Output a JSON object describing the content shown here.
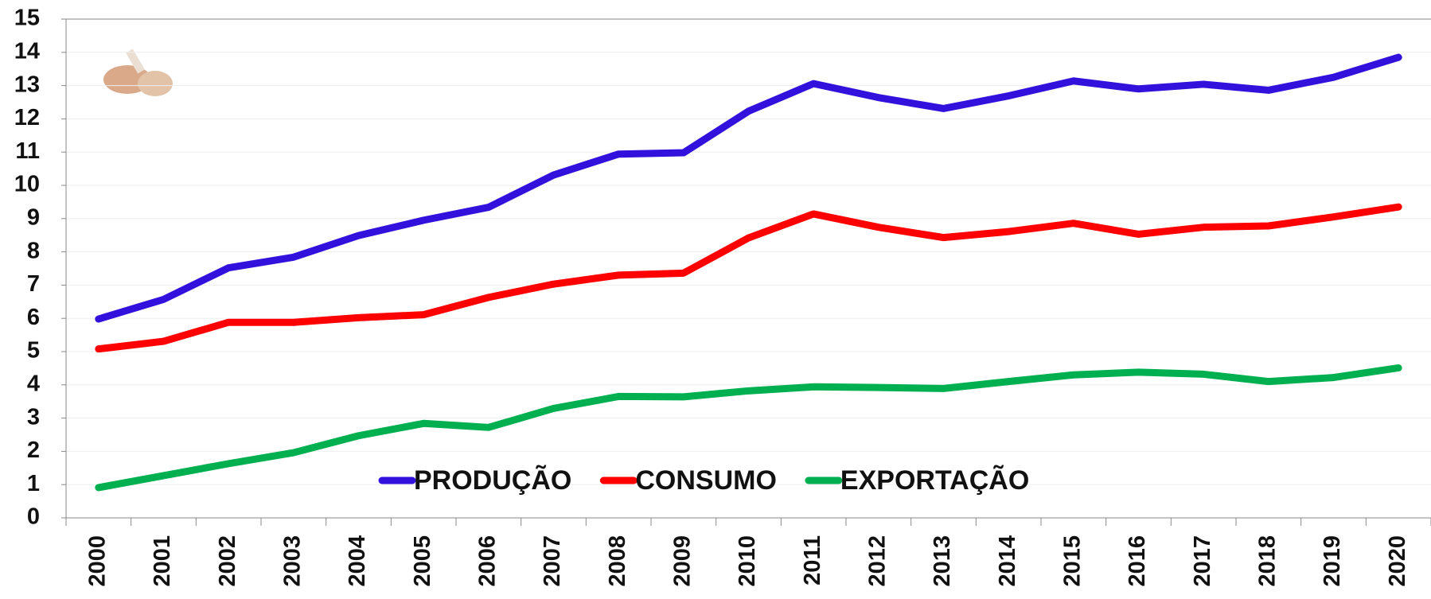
{
  "chart_data": {
    "type": "line",
    "categories": [
      "2000",
      "2001",
      "2002",
      "2003",
      "2004",
      "2005",
      "2006",
      "2007",
      "2008",
      "2009",
      "2010",
      "2011",
      "2012",
      "2013",
      "2014",
      "2015",
      "2016",
      "2017",
      "2018",
      "2019",
      "2020"
    ],
    "series": [
      {
        "name": "PRODUÇÃO",
        "color": "#3311dd",
        "values": [
          5.98,
          6.57,
          7.52,
          7.84,
          8.49,
          8.95,
          9.34,
          10.31,
          10.94,
          10.98,
          12.23,
          13.06,
          12.64,
          12.31,
          12.69,
          13.14,
          12.9,
          13.04,
          12.86,
          13.25,
          13.85
        ]
      },
      {
        "name": "CONSUMO",
        "color": "#ff0000",
        "values": [
          5.08,
          5.31,
          5.88,
          5.88,
          6.02,
          6.11,
          6.63,
          7.03,
          7.3,
          7.36,
          8.42,
          9.14,
          8.74,
          8.43,
          8.61,
          8.86,
          8.53,
          8.74,
          8.78,
          9.05,
          9.35
        ]
      },
      {
        "name": "EXPORTAÇÃO",
        "color": "#00b050",
        "values": [
          0.91,
          1.27,
          1.63,
          1.96,
          2.47,
          2.84,
          2.72,
          3.29,
          3.65,
          3.64,
          3.82,
          3.94,
          3.92,
          3.89,
          4.1,
          4.3,
          4.38,
          4.32,
          4.1,
          4.22,
          4.51
        ]
      }
    ],
    "ylim": [
      0,
      15
    ],
    "yticks": [
      0,
      1,
      2,
      3,
      4,
      5,
      6,
      7,
      8,
      9,
      10,
      11,
      12,
      13,
      14,
      15
    ],
    "grid": true,
    "legend": "bottom"
  }
}
